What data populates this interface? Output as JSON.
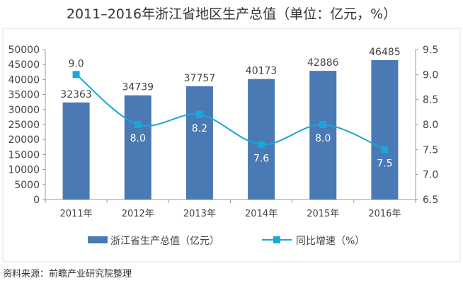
{
  "chart_data": {
    "type": "bar+line",
    "title": "2011–2016年浙江省地区生产总值（单位：亿元，%）",
    "categories": [
      "2011年",
      "2012年",
      "2013年",
      "2014年",
      "2015年",
      "2016年"
    ],
    "series": [
      {
        "name": "浙江省生产总值（亿元）",
        "type": "bar",
        "axis": "left",
        "values": [
          32363,
          34739,
          37757,
          40173,
          42886,
          46485
        ],
        "labels": [
          "32363",
          "34739",
          "37757",
          "40173",
          "42886",
          "46485"
        ],
        "color": "#4a79b4"
      },
      {
        "name": "同比增速（%）",
        "type": "line",
        "axis": "right",
        "values": [
          9.0,
          8.0,
          8.2,
          7.6,
          8.0,
          7.5
        ],
        "labels": [
          "9.0",
          "8.0",
          "8.2",
          "7.6",
          "8.0",
          "7.5"
        ],
        "color": "#1aa6d8"
      }
    ],
    "yleft": {
      "range": [
        0,
        50000
      ],
      "ticks": [
        "0",
        "5000",
        "10000",
        "15000",
        "20000",
        "25000",
        "30000",
        "35000",
        "40000",
        "45000",
        "50000"
      ]
    },
    "yright": {
      "range": [
        6.5,
        9.5
      ],
      "ticks": [
        "6.5",
        "7.0",
        "7.5",
        "8.0",
        "8.5",
        "9.0",
        "9.5"
      ]
    },
    "legend_placement": "bottom",
    "grid": false
  },
  "source": "资料来源：前瞻产业研究院整理"
}
